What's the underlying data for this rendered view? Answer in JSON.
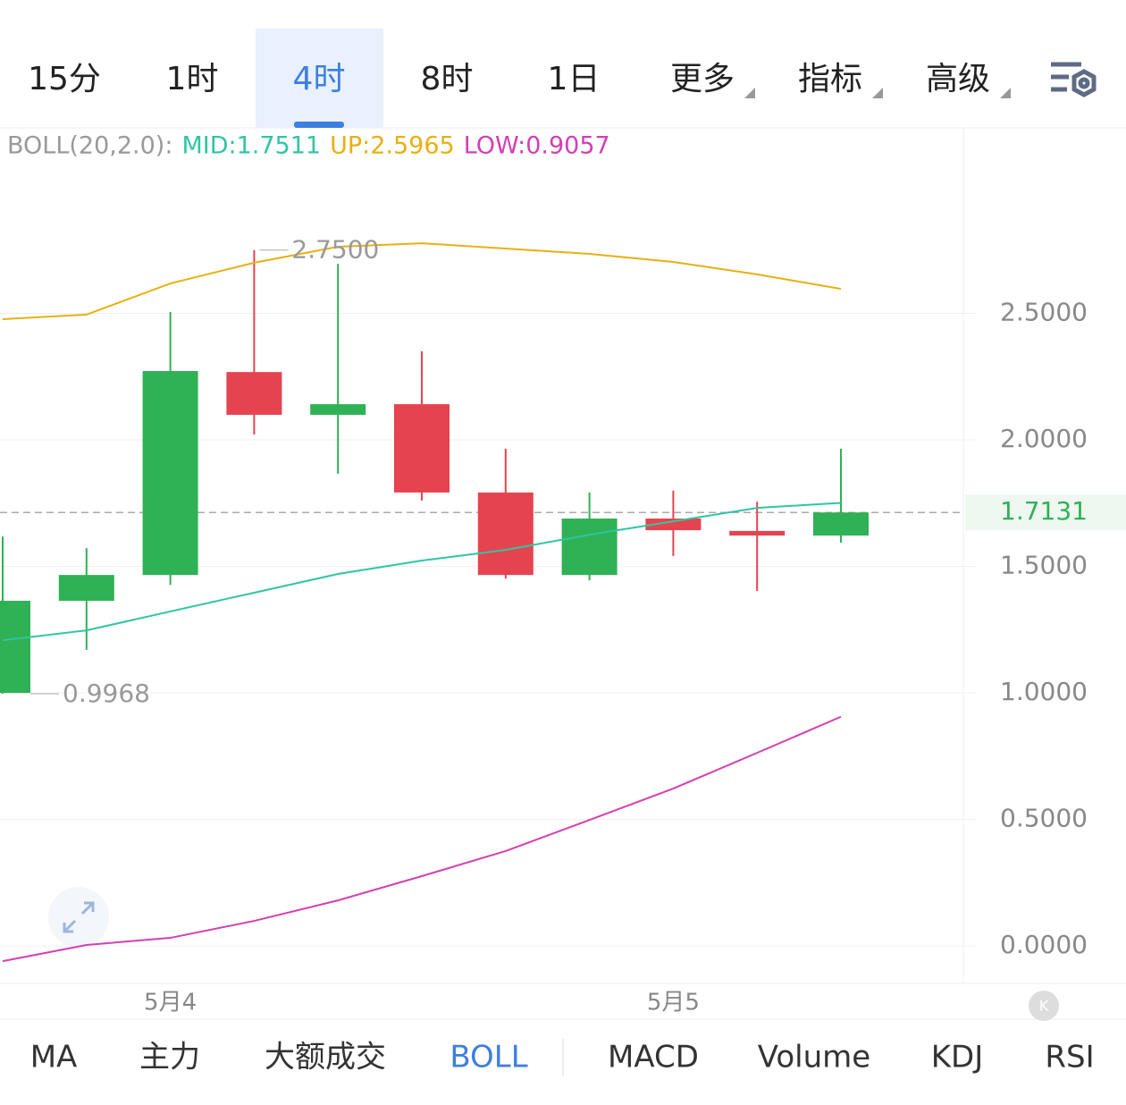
{
  "tabs": {
    "items": [
      "15分",
      "1时",
      "4时",
      "8时",
      "1日",
      "更多",
      "指标",
      "高级"
    ],
    "selected": 2
  },
  "indicator_tabs": {
    "items": [
      "MA",
      "主力",
      "大额成交",
      "BOLL",
      "MACD",
      "Volume",
      "KDJ",
      "RSI"
    ],
    "selected": 3
  },
  "chart_data": {
    "type": "candlestick",
    "indicator": "BOLL(20,2.0):",
    "categories": [
      null,
      null,
      "5月4",
      null,
      null,
      null,
      null,
      null,
      "5月5",
      null,
      null
    ],
    "open": [
      1.0,
      1.364,
      1.466,
      2.268,
      2.099,
      2.141,
      1.792,
      1.466,
      1.689,
      1.64,
      1.622
    ],
    "high": [
      1.618,
      1.572,
      2.505,
      2.75,
      2.696,
      2.35,
      1.965,
      1.792,
      1.799,
      1.756,
      1.965
    ],
    "low": [
      0.9968,
      1.17,
      1.427,
      2.021,
      1.866,
      1.76,
      1.452,
      1.445,
      1.541,
      1.403,
      1.594
    ],
    "close": [
      1.364,
      1.466,
      2.272,
      2.099,
      2.141,
      1.792,
      1.466,
      1.689,
      1.643,
      1.622,
      1.7131
    ],
    "up_color": "#2fb155",
    "down_color": "#e5434f",
    "series": [
      {
        "name": "MID:1.7511",
        "color": "#2fc6a2",
        "values": [
          1.208,
          1.247,
          1.322,
          1.396,
          1.47,
          1.523,
          1.565,
          1.625,
          1.678,
          1.731,
          1.7511
        ]
      },
      {
        "name": "UP:2.5965",
        "color": "#e8b012",
        "values": [
          2.477,
          2.495,
          2.618,
          2.7,
          2.763,
          2.777,
          2.756,
          2.735,
          2.703,
          2.654,
          2.5965
        ]
      },
      {
        "name": "LOW:0.9057",
        "color": "#d43fb3",
        "values": [
          -0.06,
          0.004,
          0.032,
          0.099,
          0.18,
          0.276,
          0.375,
          0.498,
          0.622,
          0.763,
          0.9057
        ]
      }
    ],
    "ylim": [
      -0.148,
      3.233
    ],
    "yticks": [
      {
        "value": 0,
        "label": "0.0000"
      },
      {
        "value": 0.5,
        "label": "0.5000"
      },
      {
        "value": 1,
        "label": "1.0000"
      },
      {
        "value": 1.5,
        "label": "1.5000"
      },
      {
        "value": 2,
        "label": "2.0000"
      },
      {
        "value": 2.5,
        "label": "2.5000"
      }
    ],
    "last_price": {
      "value": 1.7131,
      "label": "1.7131"
    },
    "annotations": [
      {
        "value": 2.75,
        "label": "2.7500"
      },
      {
        "value": 0.9968,
        "label": "0.9968"
      }
    ],
    "grid": true
  }
}
